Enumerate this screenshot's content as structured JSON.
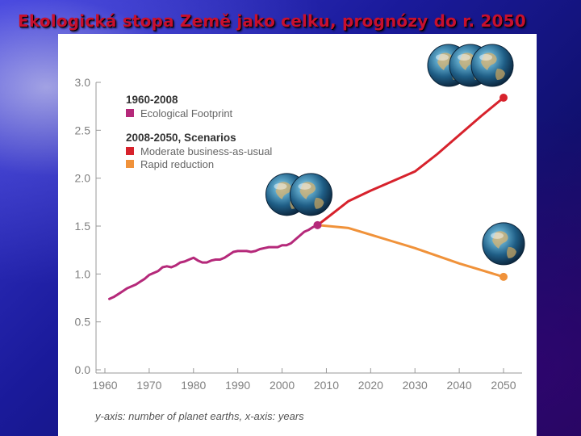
{
  "slide": {
    "title": "Ekologická stopa Země jako celku, prognózy do r. 2050"
  },
  "colors": {
    "footprint": "#b5297a",
    "moderate": "#d7222c",
    "rapid": "#f0923a",
    "axis": "#999999",
    "tick_text": "#808080",
    "legend_heading": "#333333",
    "legend_text": "#666666"
  },
  "icons": {
    "globe": "planet-earth-icon"
  },
  "chart_data": {
    "type": "line",
    "xlabel": "",
    "ylabel": "",
    "caption": "y-axis: number of planet earths, x-axis: years",
    "xlim": [
      1960,
      2050
    ],
    "ylim": [
      0,
      3.0
    ],
    "x_ticks": [
      "1960",
      "1970",
      "1980",
      "1990",
      "2000",
      "2010",
      "2020",
      "2030",
      "2040",
      "2050"
    ],
    "y_ticks": [
      "0.0",
      "0.5",
      "1.0",
      "1.5",
      "2.0",
      "2.5",
      "3.0"
    ],
    "grid": false,
    "legend": {
      "placement": "top-left",
      "groups": [
        {
          "heading": "1960-2008",
          "entries": [
            {
              "label": "Ecological Footprint",
              "series": "footprint"
            }
          ]
        },
        {
          "heading": "2008-2050, Scenarios",
          "entries": [
            {
              "label": "Moderate business-as-usual",
              "series": "moderate"
            },
            {
              "label": "Rapid reduction",
              "series": "rapid"
            }
          ]
        }
      ]
    },
    "series": [
      {
        "key": "footprint",
        "x": [
          1961,
          1962,
          1963,
          1964,
          1965,
          1966,
          1967,
          1968,
          1969,
          1970,
          1971,
          1972,
          1973,
          1974,
          1975,
          1976,
          1977,
          1978,
          1979,
          1980,
          1981,
          1982,
          1983,
          1984,
          1985,
          1986,
          1987,
          1988,
          1989,
          1990,
          1991,
          1992,
          1993,
          1994,
          1995,
          1996,
          1997,
          1998,
          1999,
          2000,
          2001,
          2002,
          2003,
          2004,
          2005,
          2006,
          2007,
          2008
        ],
        "y": [
          0.74,
          0.76,
          0.79,
          0.82,
          0.85,
          0.87,
          0.89,
          0.92,
          0.95,
          0.99,
          1.01,
          1.03,
          1.07,
          1.08,
          1.07,
          1.09,
          1.12,
          1.13,
          1.15,
          1.17,
          1.14,
          1.12,
          1.12,
          1.14,
          1.15,
          1.15,
          1.17,
          1.2,
          1.23,
          1.24,
          1.24,
          1.24,
          1.23,
          1.24,
          1.26,
          1.27,
          1.28,
          1.28,
          1.28,
          1.3,
          1.3,
          1.32,
          1.36,
          1.4,
          1.44,
          1.46,
          1.49,
          1.51
        ]
      },
      {
        "key": "moderate",
        "x": [
          2008,
          2010,
          2015,
          2020,
          2025,
          2030,
          2035,
          2040,
          2045,
          2050
        ],
        "y": [
          1.51,
          1.58,
          1.76,
          1.87,
          1.97,
          2.07,
          2.25,
          2.45,
          2.65,
          2.84
        ]
      },
      {
        "key": "rapid",
        "x": [
          2008,
          2015,
          2020,
          2025,
          2030,
          2035,
          2040,
          2045,
          2050
        ],
        "y": [
          1.51,
          1.48,
          1.41,
          1.34,
          1.27,
          1.19,
          1.11,
          1.04,
          0.97
        ]
      }
    ],
    "endpoints": [
      {
        "series": "footprint",
        "x": 2008,
        "y": 1.51
      },
      {
        "series": "moderate",
        "x": 2050,
        "y": 2.84
      },
      {
        "series": "rapid",
        "x": 2050,
        "y": 0.97
      }
    ],
    "globe_groups": [
      {
        "count": 3,
        "near_x": 2050,
        "near_y": 2.84
      },
      {
        "count": 2,
        "near_x": 2008,
        "near_y": 1.51
      },
      {
        "count": 1,
        "near_x": 2050,
        "near_y": 0.97
      }
    ]
  }
}
